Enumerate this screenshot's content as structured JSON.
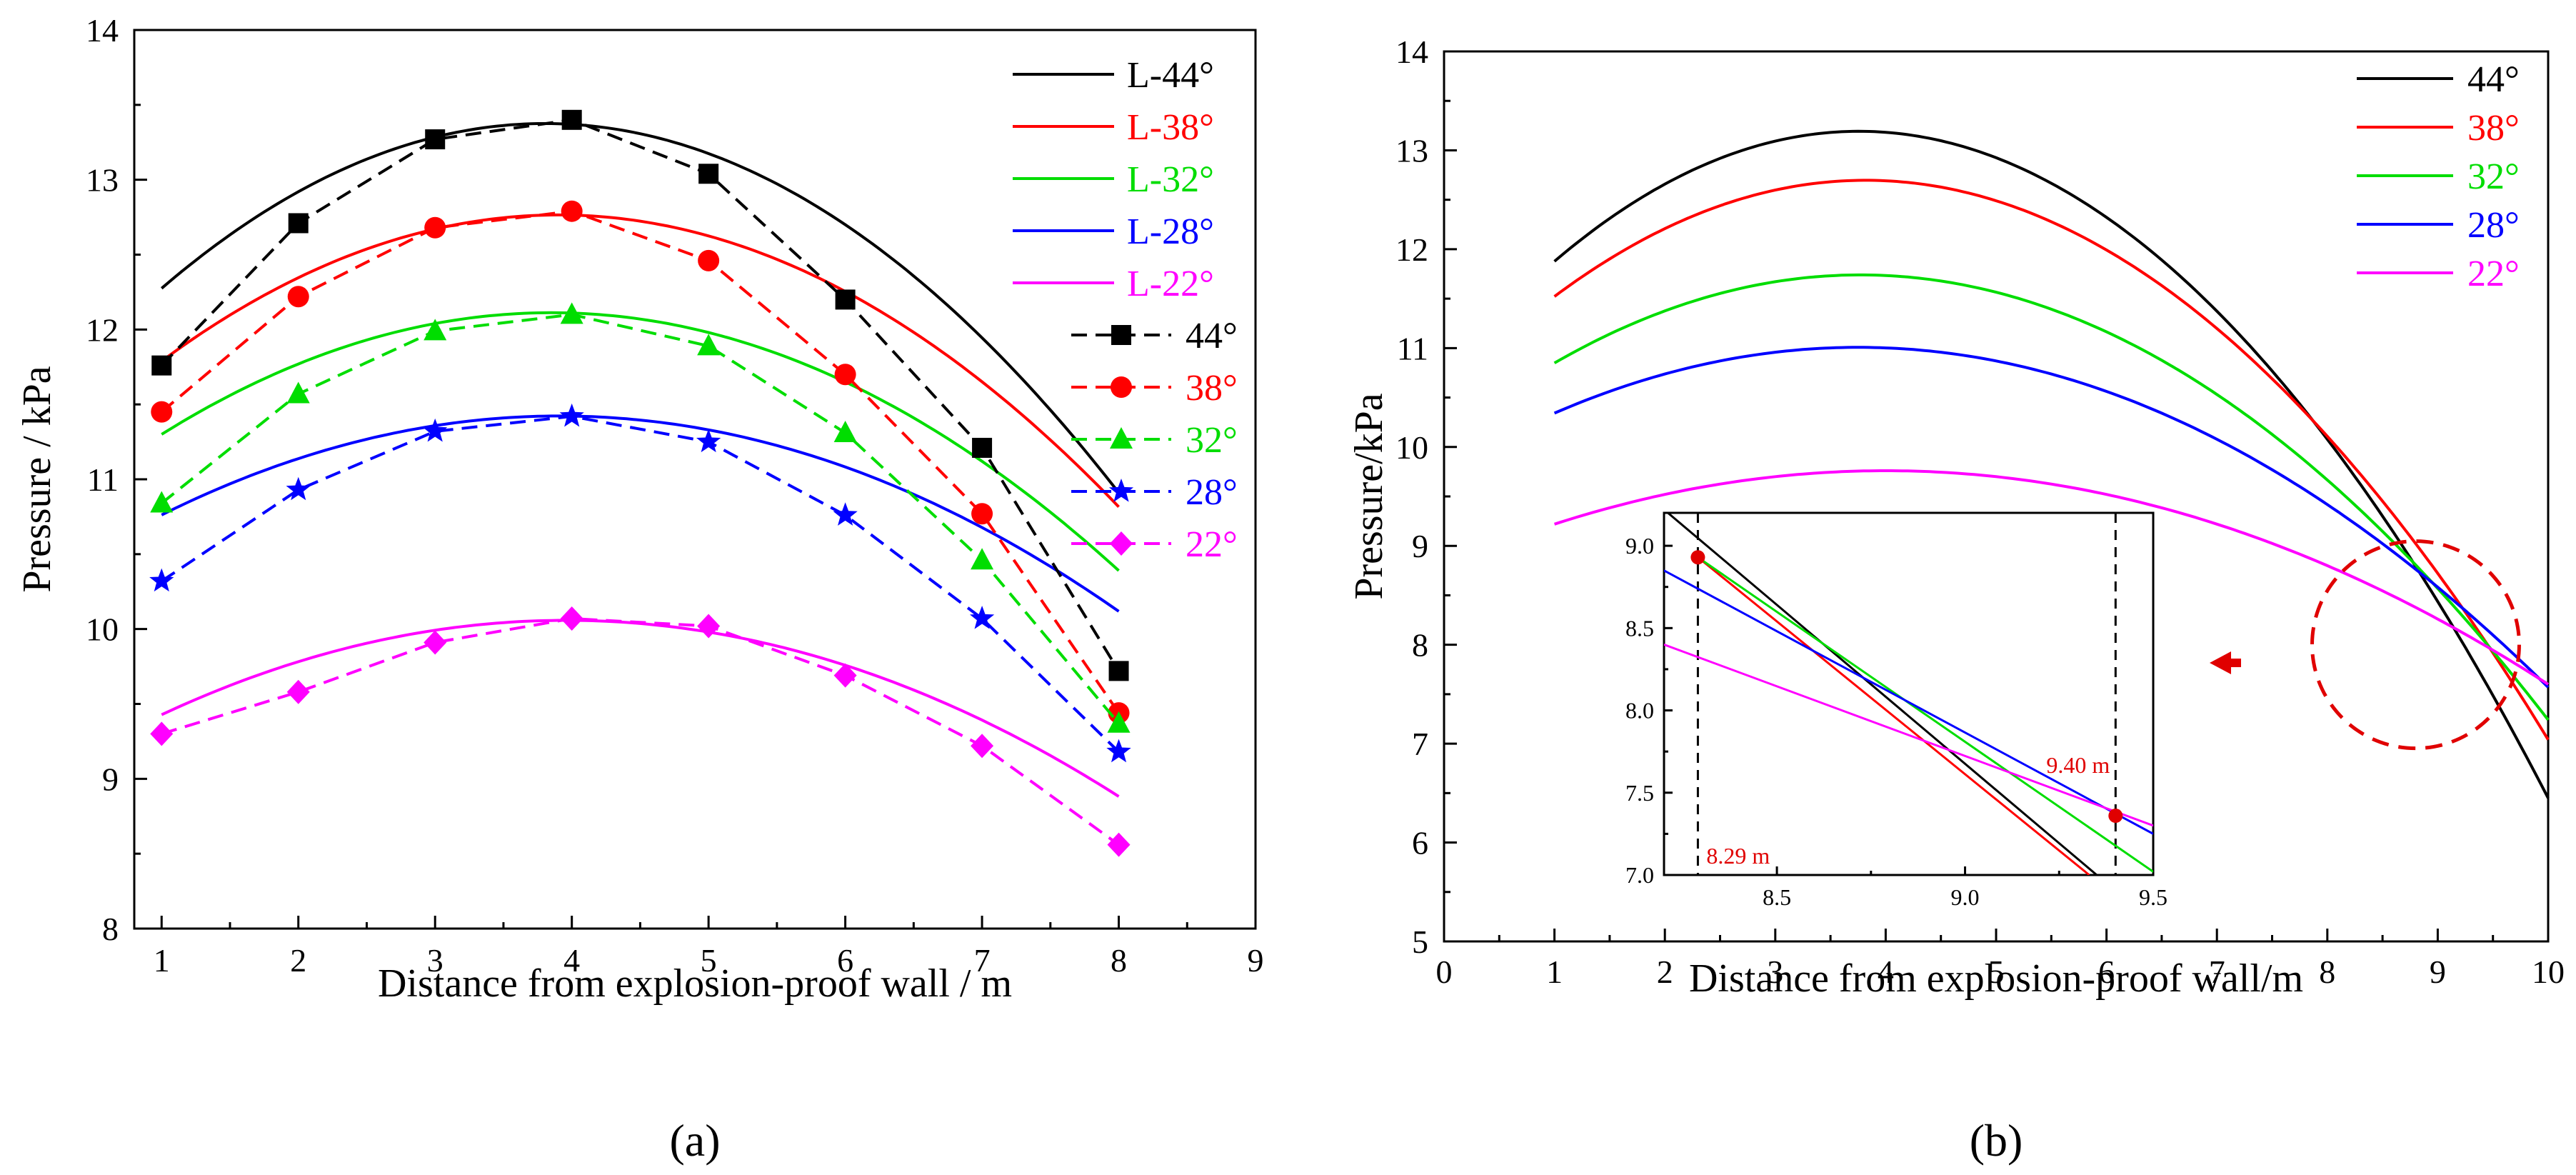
{
  "chart_data": [
    {
      "id": "a",
      "type": "line",
      "panel_label": "(a)",
      "xlabel": "Distance from explosion-proof wall / m",
      "ylabel": "Pressure / kPa",
      "xlim": [
        0.8,
        9
      ],
      "ylim": [
        8,
        14
      ],
      "xticks": [
        1,
        2,
        3,
        4,
        5,
        6,
        7,
        8,
        9
      ],
      "yticks": [
        8,
        9,
        10,
        11,
        12,
        13,
        14
      ],
      "legend_position": "top-right",
      "x": [
        1,
        2,
        3,
        4,
        5,
        6,
        7,
        8
      ],
      "series": [
        {
          "name": "L-44°",
          "style": "solid-line",
          "color": "#000000",
          "fit": [
            -0.14,
            1.065,
            11.35
          ]
        },
        {
          "name": "L-38°",
          "style": "solid-line",
          "color": "#ff0000",
          "fit": [
            -0.116,
            0.905,
            11.0
          ]
        },
        {
          "name": "L-32°",
          "style": "solid-line",
          "color": "#00dd00",
          "fit": [
            -0.1,
            0.77,
            10.63
          ]
        },
        {
          "name": "L-28°",
          "style": "solid-line",
          "color": "#0000ff",
          "fit": [
            -0.078,
            0.61,
            10.23
          ]
        },
        {
          "name": "L-22°",
          "style": "solid-line",
          "color": "#ff00ff",
          "fit": [
            -0.072,
            0.57,
            8.93
          ]
        },
        {
          "name": "44°",
          "style": "dashed-markers",
          "marker": "square",
          "color": "#000000",
          "values": [
            11.76,
            12.71,
            13.27,
            13.4,
            13.04,
            12.2,
            11.21,
            9.72
          ]
        },
        {
          "name": "38°",
          "style": "dashed-markers",
          "marker": "circle",
          "color": "#ff0000",
          "values": [
            11.45,
            12.22,
            12.68,
            12.79,
            12.46,
            11.7,
            10.77,
            9.44
          ]
        },
        {
          "name": "32°",
          "style": "dashed-markers",
          "marker": "triangle",
          "color": "#00dd00",
          "values": [
            10.84,
            11.57,
            11.99,
            12.1,
            11.89,
            11.31,
            10.46,
            9.37
          ]
        },
        {
          "name": "28°",
          "style": "dashed-markers",
          "marker": "star",
          "color": "#0000ff",
          "values": [
            10.32,
            10.93,
            11.32,
            11.42,
            11.25,
            10.76,
            10.07,
            9.18
          ]
        },
        {
          "name": "22°",
          "style": "dashed-markers",
          "marker": "diamond",
          "color": "#ff00ff",
          "values": [
            9.3,
            9.58,
            9.91,
            10.07,
            10.02,
            9.69,
            9.22,
            8.56
          ]
        }
      ]
    },
    {
      "id": "b",
      "type": "line",
      "panel_label": "(b)",
      "xlabel": "Distance from explosion-proof wall/m",
      "ylabel": "Pressure/kPa",
      "xlim": [
        0,
        10
      ],
      "ylim": [
        5,
        14
      ],
      "xticks": [
        0,
        1,
        2,
        3,
        4,
        5,
        6,
        7,
        8,
        9,
        10
      ],
      "yticks": [
        5,
        6,
        7,
        8,
        9,
        10,
        11,
        12,
        13,
        14
      ],
      "legend_position": "top-right",
      "x_range": [
        1,
        10
      ],
      "series": [
        {
          "name": "44°",
          "color": "#000000",
          "fit": [
            -0.173,
            1.3,
            10.75
          ]
        },
        {
          "name": "38°",
          "color": "#ff0000",
          "fit": [
            -0.148,
            1.13,
            10.54
          ]
        },
        {
          "name": "32°",
          "color": "#00dd00",
          "fit": [
            -0.116,
            0.875,
            10.09
          ]
        },
        {
          "name": "28°",
          "color": "#0000ff",
          "fit": [
            -0.088,
            0.66,
            9.77
          ]
        },
        {
          "name": "22°",
          "color": "#ff00ff",
          "fit": [
            -0.06,
            0.48,
            8.8
          ]
        }
      ],
      "highlight_circle": {
        "center_x": 8.8,
        "center_y": 8.0,
        "note": "zoomed region"
      },
      "inset": {
        "xlim": [
          8.2,
          9.5
        ],
        "ylim": [
          7.0,
          9.2
        ],
        "xticks": [
          "8.5",
          "9.0",
          "9.5"
        ],
        "xtick_values": [
          8.5,
          9.0,
          9.5
        ],
        "yticks": [
          "7.0",
          "7.5",
          "8.0",
          "8.5",
          "9.0"
        ],
        "ytick_values": [
          7.0,
          7.5,
          8.0,
          8.5,
          9.0
        ],
        "vlines": [
          8.29,
          9.4
        ],
        "points": [
          {
            "x": 8.29,
            "y": 8.93,
            "label": "8.29 m"
          },
          {
            "x": 9.4,
            "y": 7.36,
            "label": "9.40 m"
          }
        ],
        "series": [
          {
            "name": "44°",
            "color": "#000000",
            "x": [
              8.2,
              9.35
            ],
            "y": [
              9.22,
              7.0
            ]
          },
          {
            "name": "38°",
            "color": "#ff0000",
            "x": [
              8.29,
              9.33
            ],
            "y": [
              8.93,
              7.0
            ]
          },
          {
            "name": "32°",
            "color": "#00dd00",
            "x": [
              8.29,
              9.5
            ],
            "y": [
              8.93,
              7.02
            ]
          },
          {
            "name": "28°",
            "color": "#0000ff",
            "x": [
              8.2,
              9.5
            ],
            "y": [
              8.85,
              7.25
            ]
          },
          {
            "name": "22°",
            "color": "#ff00ff",
            "x": [
              8.2,
              9.5
            ],
            "y": [
              8.4,
              7.3
            ]
          }
        ]
      }
    }
  ]
}
